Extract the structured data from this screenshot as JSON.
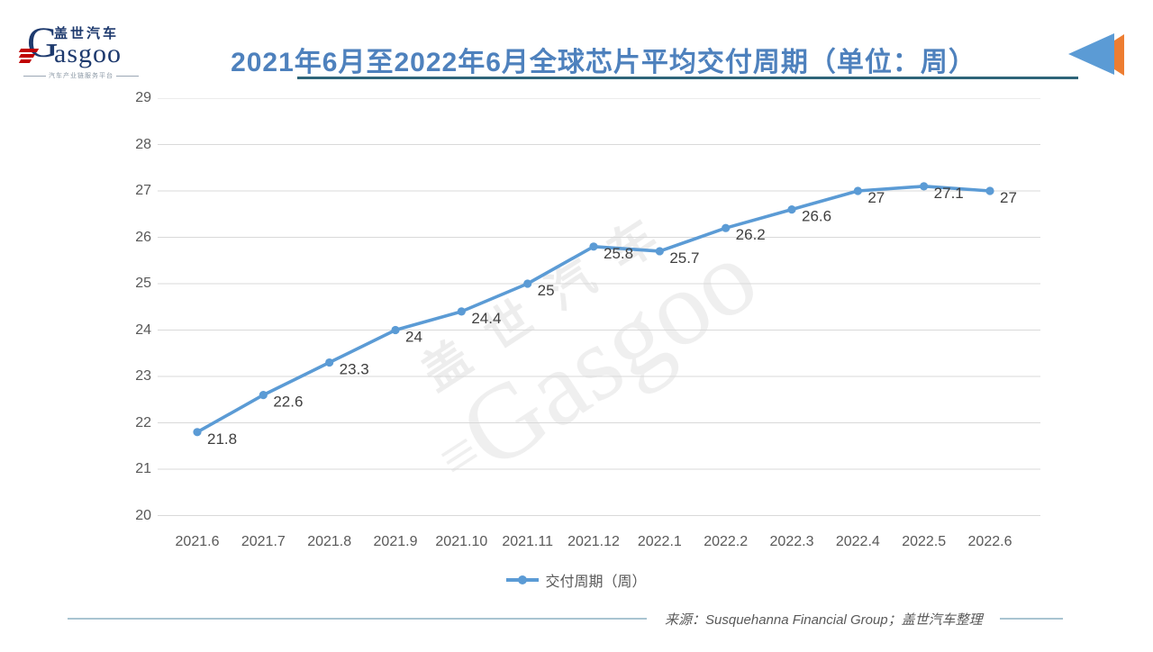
{
  "logo": {
    "cn": "盖世汽车",
    "en_initial": "G",
    "en_rest": "asgoo",
    "tagline": "汽车产业链服务平台"
  },
  "header": {
    "title": "2021年6月至2022年6月全球芯片平均交付周期（单位：周）"
  },
  "watermark": {
    "cn": "盖世汽车",
    "en": "Gasgoo"
  },
  "chart_data": {
    "type": "line",
    "title": "2021年6月至2022年6月全球芯片平均交付周期（单位：周）",
    "categories": [
      "2021.6",
      "2021.7",
      "2021.8",
      "2021.9",
      "2021.10",
      "2021.11",
      "2021.12",
      "2022.1",
      "2022.2",
      "2022.3",
      "2022.4",
      "2022.5",
      "2022.6"
    ],
    "series": [
      {
        "name": "交付周期（周）",
        "values": [
          21.8,
          22.6,
          23.3,
          24,
          24.4,
          25,
          25.8,
          25.7,
          26.2,
          26.6,
          27,
          27.1,
          27
        ],
        "labels": [
          "21.8",
          "22.6",
          "23.3",
          "24",
          "24.4",
          "25",
          "25.8",
          "25.7",
          "26.2",
          "26.6",
          "27",
          "27.1",
          "27"
        ]
      }
    ],
    "xlabel": "",
    "ylabel": "",
    "ylim": [
      20,
      29
    ],
    "yticks": [
      20,
      21,
      22,
      23,
      24,
      25,
      26,
      27,
      28,
      29
    ],
    "grid": true,
    "legend_position": "bottom",
    "line_color": "#5B9BD5",
    "marker_color": "#5B9BD5",
    "grid_color": "#D9D9D9",
    "data_label_color": "#3F3F3F"
  },
  "legend": {
    "label": "交付周期（周）"
  },
  "footer": {
    "source": "来源：Susquehanna Financial Group；盖世汽车整理"
  }
}
